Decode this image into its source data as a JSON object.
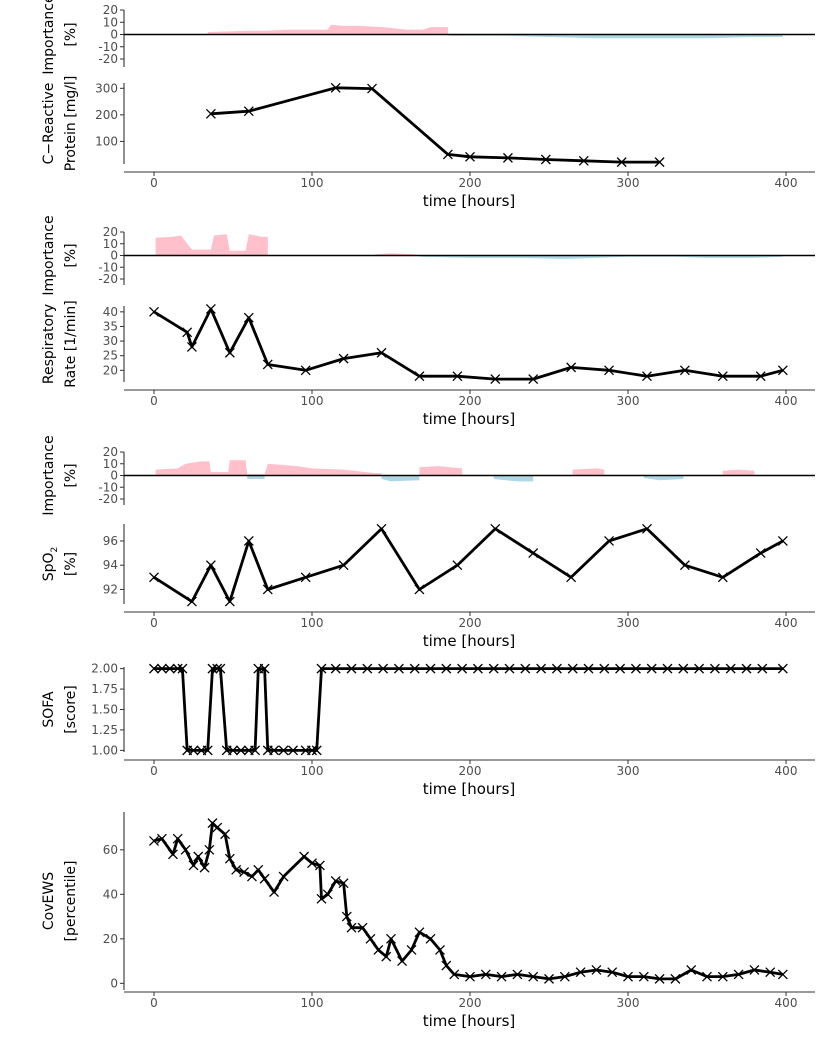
{
  "colors": {
    "positive": "#ffc0cb",
    "negative": "#add8e6",
    "line": "#000000",
    "axis": "#333333",
    "tick_text": "#4d4d4d"
  },
  "chart_data": [
    {
      "id": "imp_crp",
      "type": "area",
      "ylabel": [
        "Importance",
        "[%]"
      ],
      "ylim": [
        -20,
        20
      ],
      "yticks": [
        20,
        10,
        0,
        -10,
        -20
      ],
      "xlim": [
        0,
        400
      ],
      "series": [
        {
          "color": "positive",
          "x": [
            34,
            60,
            70,
            85,
            100,
            110,
            112,
            120,
            130,
            145,
            160,
            170,
            175,
            186
          ],
          "y": [
            2,
            3,
            3,
            4,
            4,
            4,
            8,
            7,
            7,
            6,
            4,
            4,
            6,
            6
          ]
        },
        {
          "color": "negative",
          "x": [
            187,
            200,
            220,
            250,
            280,
            300,
            320,
            350,
            380,
            398
          ],
          "y": [
            -1,
            -1,
            -1,
            -2,
            -3,
            -3,
            -3,
            -3,
            -2,
            -2
          ]
        }
      ]
    },
    {
      "id": "crp",
      "type": "line",
      "ylabel": [
        "C−Reactive",
        "Protein [mg/l]"
      ],
      "ylim": [
        15,
        320
      ],
      "yticks": [
        300,
        200,
        100
      ],
      "xlim": [
        0,
        400
      ],
      "xticks": [
        0,
        100,
        200,
        300,
        400
      ],
      "xlabel": "time [hours]",
      "x": [
        36,
        60,
        115,
        138,
        186,
        200,
        224,
        248,
        272,
        296,
        320
      ],
      "y": [
        204,
        214,
        302,
        299,
        51,
        42,
        38,
        32,
        27,
        22,
        22
      ]
    },
    {
      "id": "imp_rr",
      "type": "area",
      "ylabel": [
        "Importance",
        "[%]"
      ],
      "ylim": [
        -20,
        20
      ],
      "yticks": [
        20,
        10,
        0,
        -10,
        -20
      ],
      "xlim": [
        0,
        400
      ],
      "series": [
        {
          "color": "positive",
          "x": [
            1,
            12,
            17,
            24,
            30,
            36,
            38,
            46,
            48,
            58,
            60,
            68,
            72
          ],
          "y": [
            15,
            16,
            17,
            5,
            5,
            5,
            17,
            18,
            4,
            4,
            18,
            16,
            16
          ]
        },
        {
          "color": "positive",
          "x": [
            140,
            150,
            165
          ],
          "y": [
            1,
            2,
            1
          ]
        },
        {
          "color": "negative",
          "x": [
            168,
            200,
            230,
            260,
            300,
            330,
            350,
            380,
            398
          ],
          "y": [
            -1,
            -2,
            -2,
            -3,
            -1,
            -1,
            -2,
            -2,
            -1
          ]
        }
      ]
    },
    {
      "id": "rr",
      "type": "line",
      "ylabel": [
        "Respiratory",
        "Rate [1/min]"
      ],
      "ylim": [
        16,
        42
      ],
      "yticks": [
        40,
        35,
        30,
        25,
        20
      ],
      "xlim": [
        0,
        400
      ],
      "xticks": [
        0,
        100,
        200,
        300,
        400
      ],
      "xlabel": "time [hours]",
      "x": [
        0,
        21,
        24,
        36,
        48,
        60,
        72,
        96,
        120,
        144,
        168,
        192,
        216,
        240,
        264,
        288,
        312,
        336,
        360,
        384,
        398
      ],
      "y": [
        40,
        33,
        28,
        41,
        26,
        38,
        22,
        20,
        24,
        26,
        18,
        18,
        17,
        17,
        21,
        20,
        18,
        20,
        18,
        18,
        20
      ]
    },
    {
      "id": "imp_spo2",
      "type": "area",
      "ylabel": [
        "Importance",
        "[%]"
      ],
      "ylim": [
        -20,
        20
      ],
      "yticks": [
        20,
        10,
        0,
        -10,
        -20
      ],
      "xlim": [
        0,
        400
      ],
      "series": [
        {
          "color": "positive",
          "x": [
            1,
            15,
            20,
            30,
            35,
            36,
            47,
            48,
            58,
            59,
            70,
            72,
            90,
            100,
            120,
            140,
            144
          ],
          "y": [
            5,
            6,
            10,
            12,
            12,
            3,
            3,
            13,
            13,
            1,
            1,
            10,
            8,
            6,
            5,
            2,
            2
          ]
        },
        {
          "color": "negative",
          "x": [
            59,
            70
          ],
          "y": [
            -3,
            -3
          ]
        },
        {
          "color": "negative",
          "x": [
            144,
            150,
            168
          ],
          "y": [
            -3,
            -5,
            -4
          ]
        },
        {
          "color": "positive",
          "x": [
            168,
            180,
            195
          ],
          "y": [
            7,
            8,
            6
          ]
        },
        {
          "color": "negative",
          "x": [
            215,
            230,
            240
          ],
          "y": [
            -3,
            -5,
            -5
          ]
        },
        {
          "color": "positive",
          "x": [
            265,
            280,
            285
          ],
          "y": [
            5,
            6,
            5
          ]
        },
        {
          "color": "negative",
          "x": [
            310,
            320,
            335
          ],
          "y": [
            -2,
            -4,
            -3
          ]
        },
        {
          "color": "positive",
          "x": [
            360,
            370,
            380
          ],
          "y": [
            4,
            5,
            4
          ]
        }
      ]
    },
    {
      "id": "spo2",
      "type": "line",
      "ylabel": [
        "SpO2",
        "[%]"
      ],
      "ylim": [
        90.8,
        97.4
      ],
      "yticks": [
        96,
        94,
        92
      ],
      "xlim": [
        0,
        400
      ],
      "xticks": [
        0,
        100,
        200,
        300,
        400
      ],
      "xlabel": "time [hours]",
      "x": [
        0,
        24,
        36,
        48,
        60,
        72,
        96,
        120,
        144,
        168,
        192,
        216,
        240,
        264,
        288,
        312,
        336,
        360,
        384,
        398
      ],
      "y": [
        93,
        91,
        94,
        91,
        96,
        92,
        93,
        94,
        97,
        92,
        94,
        97,
        95,
        93,
        96,
        97,
        94,
        93,
        95,
        96
      ]
    },
    {
      "id": "sofa",
      "type": "line",
      "ylabel": [
        "SOFA",
        "[score]"
      ],
      "ylim": [
        0.98,
        2.02
      ],
      "yticks": [
        "2.00",
        "1.75",
        "1.50",
        "1.25",
        "1.00"
      ],
      "xlim": [
        0,
        400
      ],
      "xticks": [
        0,
        100,
        200,
        300,
        400
      ],
      "xlabel": "time [hours]",
      "x": [
        0,
        5,
        10,
        15,
        18,
        21,
        25,
        30,
        34,
        37,
        40,
        42,
        46,
        50,
        55,
        60,
        64,
        66,
        70,
        72,
        76,
        82,
        88,
        96,
        100,
        103,
        106,
        115,
        125,
        135,
        145,
        155,
        165,
        175,
        185,
        195,
        205,
        215,
        225,
        235,
        245,
        255,
        265,
        275,
        285,
        295,
        305,
        315,
        325,
        335,
        345,
        355,
        365,
        375,
        385,
        398
      ],
      "y": [
        2,
        2,
        2,
        2,
        2,
        1,
        1,
        1,
        1,
        2,
        2,
        2,
        1,
        1,
        1,
        1,
        1,
        2,
        2,
        1,
        1,
        1,
        1,
        1,
        1,
        1,
        2,
        2,
        2,
        2,
        2,
        2,
        2,
        2,
        2,
        2,
        2,
        2,
        2,
        2,
        2,
        2,
        2,
        2,
        2,
        2,
        2,
        2,
        2,
        2,
        2,
        2,
        2,
        2,
        2,
        2
      ]
    },
    {
      "id": "covews",
      "type": "line",
      "ylabel": [
        "CovEWS",
        "[percentile]"
      ],
      "ylim": [
        -3,
        77
      ],
      "yticks": [
        60,
        40,
        20,
        0
      ],
      "xlim": [
        0,
        400
      ],
      "xticks": [
        0,
        100,
        200,
        300,
        400
      ],
      "xlabel": "time [hours]",
      "x": [
        0,
        5,
        12,
        15,
        20,
        25,
        28,
        32,
        35,
        37,
        40,
        45,
        48,
        52,
        57,
        62,
        66,
        70,
        76,
        82,
        95,
        100,
        105,
        106,
        110,
        115,
        120,
        122,
        125,
        132,
        137,
        142,
        147,
        150,
        157,
        163,
        168,
        175,
        181,
        185,
        190,
        200,
        210,
        220,
        230,
        240,
        250,
        260,
        270,
        280,
        290,
        300,
        310,
        320,
        330,
        340,
        350,
        360,
        370,
        380,
        390,
        398
      ],
      "y": [
        64,
        65,
        58,
        65,
        60,
        53,
        57,
        52,
        60,
        72,
        70,
        67,
        56,
        51,
        50,
        48,
        51,
        47,
        41,
        48,
        57,
        54,
        53,
        38,
        40,
        46,
        45,
        30,
        25,
        25,
        20,
        15,
        12,
        20,
        10,
        15,
        23,
        20,
        15,
        8,
        4,
        3,
        4,
        3,
        4,
        3,
        2,
        3,
        5,
        6,
        5,
        3,
        3,
        2,
        2,
        6,
        3,
        3,
        4,
        6,
        5,
        4
      ]
    }
  ]
}
